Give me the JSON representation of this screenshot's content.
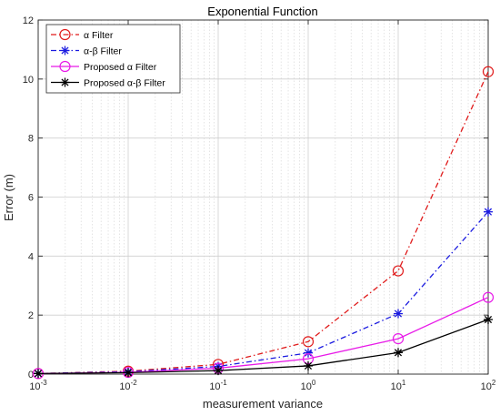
{
  "chart_data": {
    "type": "line",
    "title": "Exponential Function",
    "xlabel": "measurement variance",
    "ylabel": "Error (m)",
    "xscale": "log",
    "x": [
      0.001,
      0.01,
      0.1,
      1,
      10,
      100
    ],
    "xlim": [
      0.001,
      100
    ],
    "ylim": [
      0,
      12
    ],
    "yticks": [
      0,
      2,
      4,
      6,
      8,
      10,
      12
    ],
    "xtick_labels": [
      {
        "base": "10",
        "exp": "-3"
      },
      {
        "base": "10",
        "exp": "-2"
      },
      {
        "base": "10",
        "exp": "-1"
      },
      {
        "base": "10",
        "exp": "0"
      },
      {
        "base": "10",
        "exp": "1"
      },
      {
        "base": "10",
        "exp": "2"
      }
    ],
    "grid": true,
    "minor_grid": true,
    "legend_position": "top-left",
    "series": [
      {
        "name": "α Filter",
        "color": "#e01b1b",
        "line": "dash-dot",
        "marker": "circle",
        "values": [
          0.02,
          0.1,
          0.33,
          1.1,
          3.5,
          10.25
        ]
      },
      {
        "name": "α-β Filter",
        "color": "#1b1be0",
        "line": "dash-dot",
        "marker": "asterisk",
        "values": [
          0.02,
          0.08,
          0.26,
          0.72,
          2.05,
          5.5
        ]
      },
      {
        "name": "Proposed α Filter",
        "color": "#e81be8",
        "line": "solid",
        "marker": "circle",
        "values": [
          0.02,
          0.06,
          0.2,
          0.52,
          1.2,
          2.6
        ]
      },
      {
        "name": "Proposed α-β Filter",
        "color": "#000000",
        "line": "solid",
        "marker": "asterisk",
        "values": [
          0.02,
          0.05,
          0.12,
          0.28,
          0.73,
          1.85
        ]
      }
    ]
  }
}
